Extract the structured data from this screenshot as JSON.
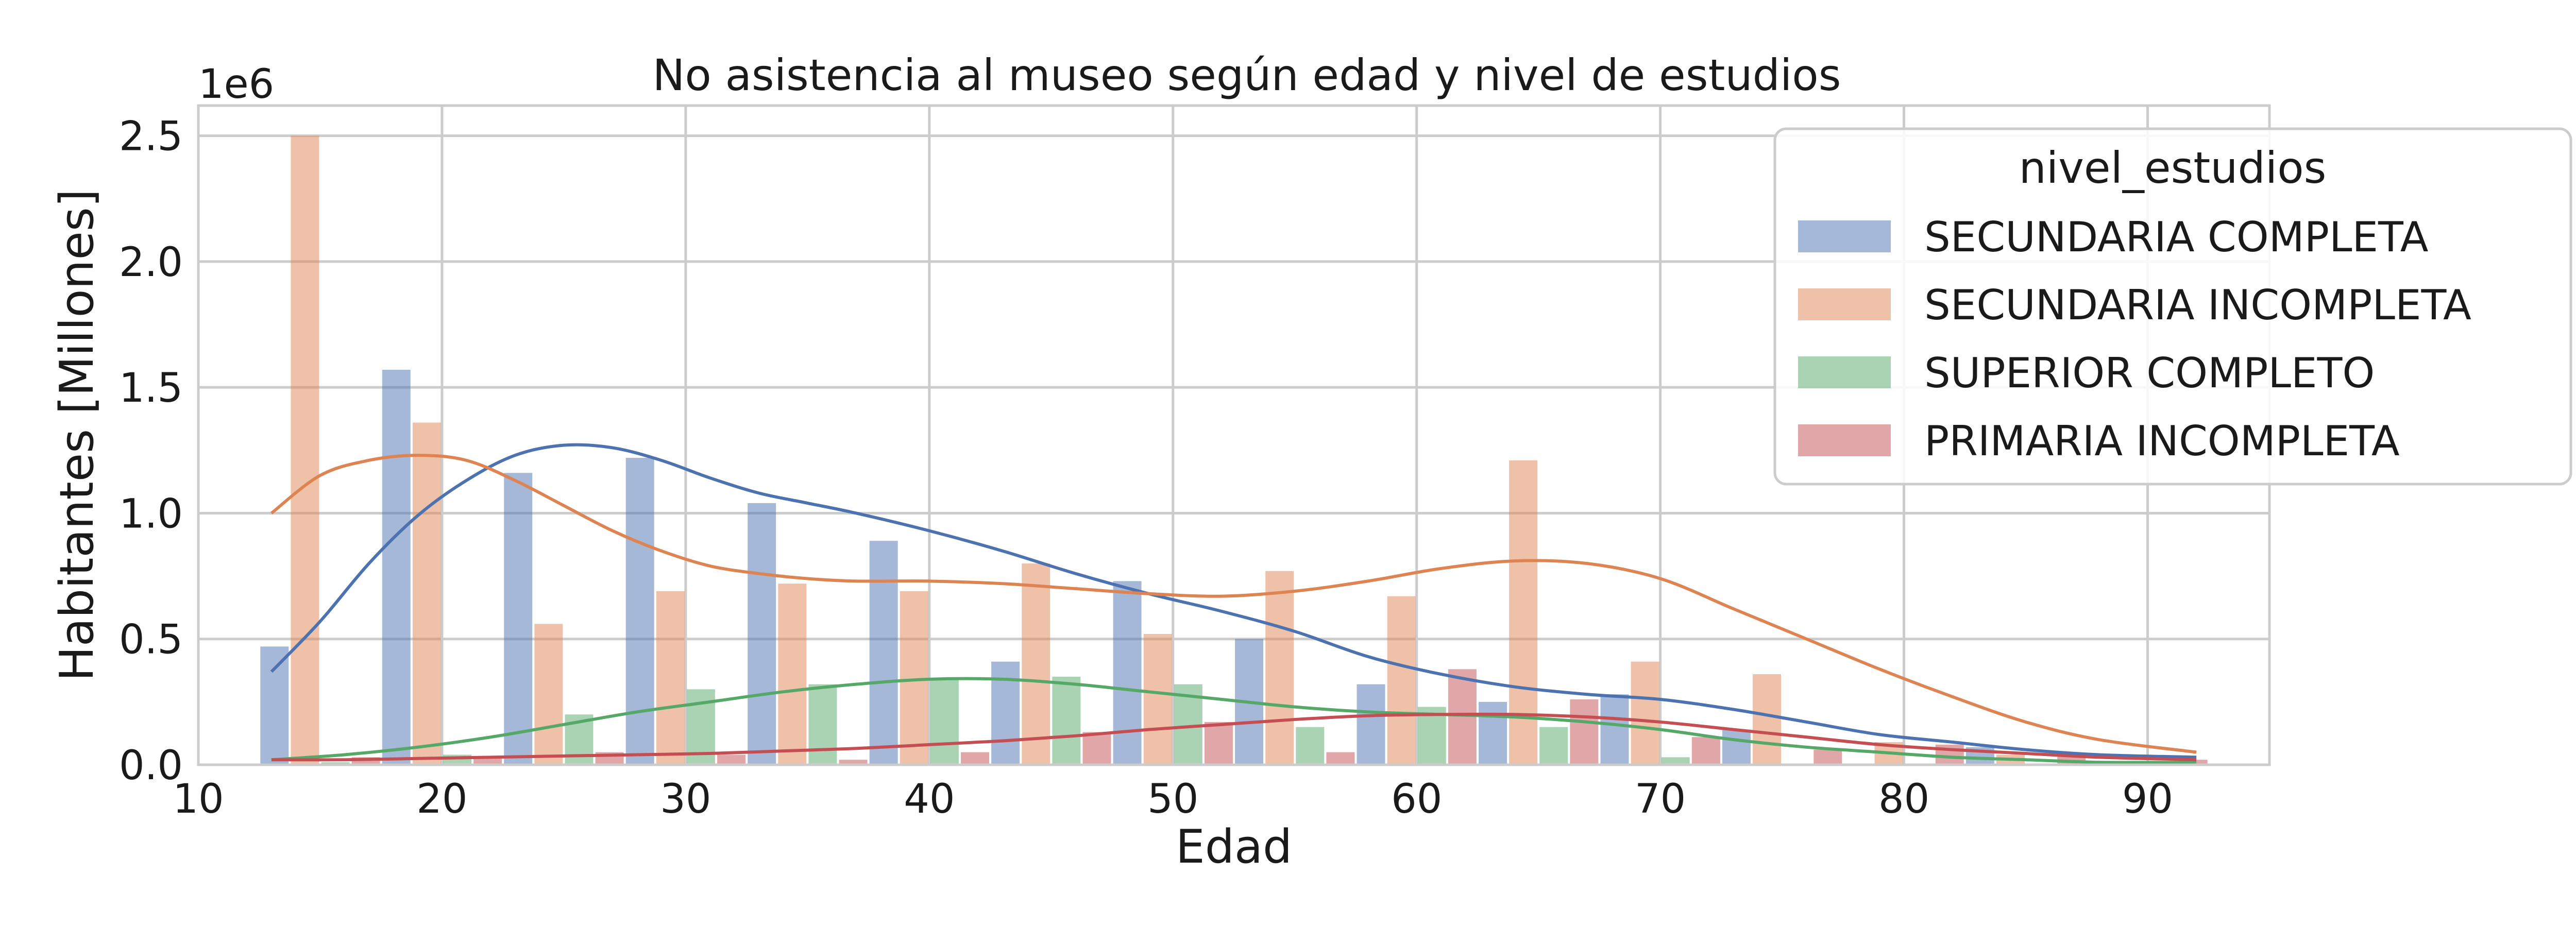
{
  "chart_data": {
    "type": "bar",
    "title": "No asistencia al museo según edad y nivel de estudios",
    "xlabel": "Edad",
    "ylabel": "Habitantes [Millones]",
    "y_offset_text": "1e6",
    "xlim": [
      10,
      95
    ],
    "ylim": [
      0,
      2620000
    ],
    "xticks": [
      10,
      20,
      30,
      40,
      50,
      60,
      70,
      80,
      90
    ],
    "yticks": [
      0,
      500000,
      1000000,
      1500000,
      2000000,
      2500000
    ],
    "ytick_labels": [
      "0.0",
      "0.5",
      "1.0",
      "1.5",
      "2.0",
      "2.5"
    ],
    "grid": true,
    "legend_title": "nivel_estudios",
    "legend_position": "upper-right",
    "bin_width": 5,
    "bin_starts": [
      12.5,
      17.5,
      22.5,
      27.5,
      32.5,
      37.5,
      42.5,
      47.5,
      52.5,
      57.5,
      62.5,
      67.5,
      72.5,
      77.5,
      82.5,
      87.5
    ],
    "series": [
      {
        "name": "SECUNDARIA COMPLETA",
        "color": "#4c72b0",
        "values": [
          470000,
          1570000,
          1160000,
          1220000,
          1040000,
          890000,
          410000,
          730000,
          500000,
          320000,
          250000,
          280000,
          140000,
          0,
          70000,
          0
        ],
        "kde_x": [
          13,
          15,
          17,
          19,
          21,
          23,
          25,
          27,
          29,
          31,
          33,
          35,
          37,
          40,
          43,
          46,
          49,
          52,
          55,
          58,
          61,
          64,
          67,
          70,
          73,
          76,
          79,
          82,
          85,
          88,
          92
        ],
        "kde_y": [
          370000,
          570000,
          800000,
          990000,
          1130000,
          1230000,
          1270000,
          1260000,
          1210000,
          1140000,
          1080000,
          1040000,
          1000000,
          930000,
          850000,
          760000,
          680000,
          610000,
          530000,
          430000,
          360000,
          310000,
          280000,
          260000,
          220000,
          170000,
          120000,
          90000,
          60000,
          40000,
          30000
        ]
      },
      {
        "name": "SECUNDARIA INCOMPLETA",
        "color": "#dd8452",
        "values": [
          2500000,
          1360000,
          560000,
          690000,
          720000,
          690000,
          800000,
          520000,
          770000,
          670000,
          1210000,
          410000,
          360000,
          90000,
          40000,
          0
        ],
        "kde_x": [
          13,
          15,
          17,
          19,
          21,
          23,
          25,
          27,
          29,
          31,
          33,
          35,
          37,
          40,
          43,
          46,
          49,
          52,
          55,
          58,
          61,
          64,
          67,
          70,
          73,
          76,
          79,
          82,
          85,
          88,
          92
        ],
        "kde_y": [
          1000000,
          1150000,
          1210000,
          1230000,
          1210000,
          1130000,
          1030000,
          930000,
          850000,
          790000,
          760000,
          740000,
          730000,
          730000,
          720000,
          700000,
          680000,
          670000,
          690000,
          730000,
          780000,
          810000,
          800000,
          740000,
          620000,
          500000,
          380000,
          270000,
          170000,
          100000,
          50000
        ]
      },
      {
        "name": "SUPERIOR COMPLETO",
        "color": "#55a868",
        "values": [
          10000,
          40000,
          200000,
          300000,
          320000,
          340000,
          350000,
          320000,
          150000,
          230000,
          150000,
          30000,
          0,
          0,
          0,
          0
        ],
        "kde_x": [
          13,
          16,
          19,
          22,
          25,
          28,
          31,
          34,
          37,
          40,
          43,
          46,
          49,
          52,
          55,
          58,
          61,
          64,
          67,
          70,
          73,
          76,
          79,
          82,
          85,
          88,
          92
        ],
        "kde_y": [
          20000,
          40000,
          70000,
          110000,
          160000,
          210000,
          250000,
          290000,
          320000,
          340000,
          340000,
          320000,
          290000,
          260000,
          230000,
          210000,
          200000,
          190000,
          170000,
          140000,
          100000,
          70000,
          50000,
          30000,
          20000,
          10000,
          10000
        ]
      },
      {
        "name": "PRIMARIA INCOMPLETA",
        "color": "#c44e52",
        "values": [
          30000,
          30000,
          50000,
          40000,
          20000,
          50000,
          130000,
          170000,
          50000,
          380000,
          260000,
          110000,
          60000,
          80000,
          40000,
          20000
        ],
        "kde_x": [
          13,
          16,
          19,
          22,
          25,
          28,
          31,
          34,
          37,
          40,
          43,
          46,
          49,
          52,
          55,
          58,
          61,
          64,
          67,
          70,
          73,
          76,
          79,
          82,
          85,
          88,
          92
        ],
        "kde_y": [
          20000,
          20000,
          25000,
          30000,
          35000,
          40000,
          45000,
          55000,
          65000,
          80000,
          95000,
          115000,
          140000,
          160000,
          180000,
          195000,
          200000,
          200000,
          190000,
          170000,
          140000,
          110000,
          80000,
          60000,
          45000,
          30000,
          20000
        ]
      }
    ]
  }
}
